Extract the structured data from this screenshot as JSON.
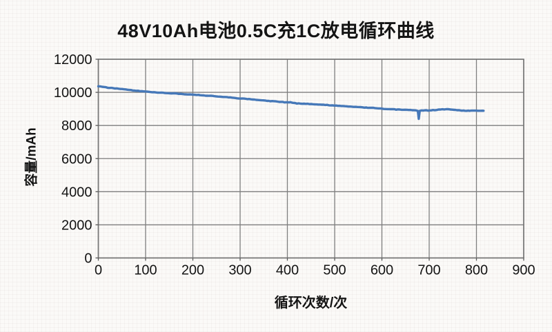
{
  "chart_data": {
    "type": "line",
    "title": "48V10Ah电池0.5C充1C放电循环曲线",
    "xlabel": "循环次数/次",
    "ylabel": "容量/mAh",
    "xlim": [
      0,
      900
    ],
    "ylim": [
      0,
      12000
    ],
    "x_ticks": [
      0,
      100,
      200,
      300,
      400,
      500,
      600,
      700,
      800,
      900
    ],
    "y_ticks": [
      0,
      2000,
      4000,
      6000,
      8000,
      10000,
      12000
    ],
    "grid": true,
    "legend": false,
    "colors": {
      "line": "#4678b8",
      "grid": "#7f7f7f",
      "border": "#737373",
      "tick": "#595959",
      "text": "#141414",
      "background": "#fbfaf8"
    },
    "series": [
      {
        "name": "容量/mAh",
        "points": [
          [
            0,
            10380
          ],
          [
            8,
            10330
          ],
          [
            16,
            10300
          ],
          [
            25,
            10270
          ],
          [
            35,
            10240
          ],
          [
            50,
            10200
          ],
          [
            65,
            10150
          ],
          [
            80,
            10100
          ],
          [
            95,
            10060
          ],
          [
            110,
            10020
          ],
          [
            125,
            9995
          ],
          [
            140,
            9970
          ],
          [
            155,
            9945
          ],
          [
            170,
            9915
          ],
          [
            185,
            9890
          ],
          [
            200,
            9860
          ],
          [
            215,
            9835
          ],
          [
            230,
            9800
          ],
          [
            245,
            9775
          ],
          [
            260,
            9730
          ],
          [
            275,
            9705
          ],
          [
            290,
            9660
          ],
          [
            300,
            9630
          ],
          [
            315,
            9600
          ],
          [
            330,
            9560
          ],
          [
            345,
            9530
          ],
          [
            360,
            9480
          ],
          [
            375,
            9450
          ],
          [
            390,
            9415
          ],
          [
            400,
            9390
          ],
          [
            406,
            9405
          ],
          [
            412,
            9360
          ],
          [
            420,
            9330
          ],
          [
            435,
            9310
          ],
          [
            450,
            9295
          ],
          [
            465,
            9270
          ],
          [
            480,
            9240
          ],
          [
            495,
            9210
          ],
          [
            510,
            9180
          ],
          [
            525,
            9160
          ],
          [
            540,
            9130
          ],
          [
            555,
            9100
          ],
          [
            570,
            9070
          ],
          [
            585,
            9050
          ],
          [
            600,
            9015
          ],
          [
            615,
            8990
          ],
          [
            630,
            8965
          ],
          [
            645,
            8950
          ],
          [
            660,
            8935
          ],
          [
            672,
            8920
          ],
          [
            676,
            8880
          ],
          [
            678,
            8400
          ],
          [
            680,
            8890
          ],
          [
            690,
            8915
          ],
          [
            700,
            8905
          ],
          [
            712,
            8930
          ],
          [
            724,
            8965
          ],
          [
            736,
            8985
          ],
          [
            745,
            8970
          ],
          [
            755,
            8940
          ],
          [
            765,
            8910
          ],
          [
            775,
            8890
          ],
          [
            785,
            8895
          ],
          [
            795,
            8910
          ],
          [
            805,
            8900
          ],
          [
            815,
            8890
          ]
        ]
      }
    ]
  }
}
